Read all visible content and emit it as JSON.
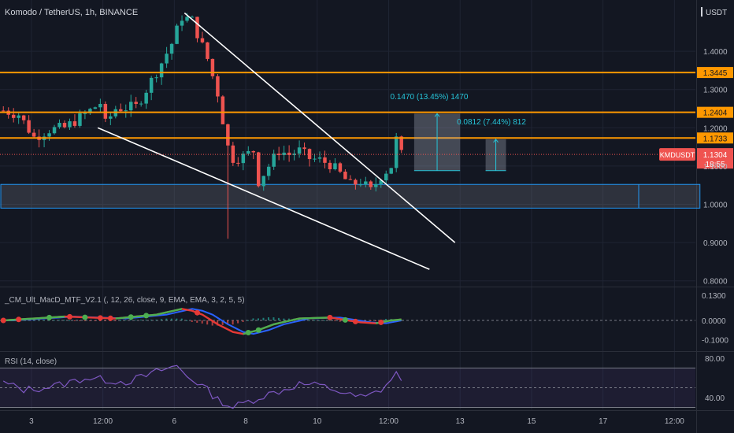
{
  "header": {
    "symbol_title": "Komodo / TetherUS, 1h, BINANCE",
    "currency": "USDT"
  },
  "colors": {
    "background": "#131722",
    "grid": "#1f2433",
    "bull": "#26a69a",
    "bear": "#ef5350",
    "level_line": "#ff9800",
    "level_label_bg": "#ff9800",
    "support_zone_border": "#2196f3",
    "trendline": "#ffffff",
    "measure": "#26c6da",
    "macd_green": "#4caf50",
    "macd_red": "#e53935",
    "macd_blue": "#2962ff",
    "rsi_line": "#7e57c2",
    "price_label_bg": "#ef5350"
  },
  "chart_data": [
    {
      "type": "candlestick",
      "name": "KMDUSDT",
      "title": "Komodo / TetherUS, 1h, BINANCE",
      "ylim": [
        0.8,
        1.5
      ],
      "y_ticks": [
        1.4,
        1.3,
        1.2,
        1.1,
        1.0,
        0.9,
        0.8
      ],
      "x_ticks": [
        "3",
        "12:00",
        "6",
        "8",
        "10",
        "12:00",
        "13",
        "15",
        "17",
        "12:00"
      ],
      "x_tick_bars": [
        6,
        20,
        34,
        48,
        62,
        76,
        90,
        104,
        118,
        132
      ],
      "price_path": [
        [
          0,
          1.245
        ],
        [
          3,
          1.235
        ],
        [
          6,
          1.175
        ],
        [
          9,
          1.195
        ],
        [
          12,
          1.2
        ],
        [
          16,
          1.235
        ],
        [
          19,
          1.265
        ],
        [
          20,
          1.21
        ],
        [
          22,
          1.25
        ],
        [
          26,
          1.255
        ],
        [
          28,
          1.3
        ],
        [
          31,
          1.37
        ],
        [
          33,
          1.42
        ],
        [
          35,
          1.49
        ],
        [
          37,
          1.48
        ],
        [
          40,
          1.38
        ],
        [
          42,
          1.29
        ],
        [
          44,
          1.15
        ],
        [
          45,
          1.12
        ],
        [
          47,
          1.125
        ],
        [
          49,
          1.14
        ],
        [
          50,
          1.06
        ],
        [
          52,
          1.1
        ],
        [
          54,
          1.14
        ],
        [
          56,
          1.13
        ],
        [
          58,
          1.14
        ],
        [
          60,
          1.12
        ],
        [
          62,
          1.115
        ],
        [
          64,
          1.105
        ],
        [
          66,
          1.08
        ],
        [
          68,
          1.05
        ],
        [
          70,
          1.06
        ],
        [
          72,
          1.035
        ],
        [
          74,
          1.075
        ],
        [
          76,
          1.1
        ],
        [
          77,
          1.17
        ],
        [
          78,
          1.13
        ]
      ],
      "wick_extremes": {
        "high": 1.5,
        "spike_low": 0.91,
        "spike_bar": 44
      },
      "current_price": {
        "ticker": "KMDUSDT",
        "value": "1.1304",
        "countdown": "18:55"
      },
      "levels": [
        {
          "value": 1.3445,
          "label": "1.3445"
        },
        {
          "value": 1.2404,
          "label": "1.2404"
        },
        {
          "value": 1.1733,
          "label": "1.1733"
        }
      ],
      "support_zone": {
        "from": 0.99,
        "to": 1.052,
        "bar_from": 0,
        "bar_to": 137,
        "divider_bar": 125
      },
      "trendlines": [
        {
          "from": [
            36,
            1.5
          ],
          "to": [
            89,
            0.9
          ]
        },
        {
          "from": [
            19,
            1.2
          ],
          "to": [
            84,
            0.83
          ]
        }
      ],
      "measurements": [
        {
          "label": "0.1470 (13.45%) 1470",
          "from_bar": 81,
          "to_bar": 90,
          "base": 1.088,
          "top": 1.237
        },
        {
          "label": "0.0812 (7.44%) 812",
          "from_bar": 95,
          "to_bar": 99,
          "base": 1.088,
          "top": 1.17
        }
      ]
    },
    {
      "type": "line",
      "title": "_CM_Ult_MacD_MTF_V2.1 (, 12, 26, close, 9, EMA, EMA, 3, 2, 5, 5)",
      "ylim": [
        -0.1,
        0.14
      ],
      "y_ticks": [
        0.13,
        0.0,
        -0.1
      ],
      "series": [
        {
          "values": [
            [
              0,
              0.0
            ],
            [
              12,
              0.02
            ],
            [
              22,
              0.01
            ],
            [
              30,
              0.03
            ],
            [
              35,
              0.06
            ],
            [
              37,
              0.05
            ],
            [
              39,
              0.03
            ],
            [
              42,
              -0.02
            ],
            [
              45,
              -0.06
            ],
            [
              47,
              -0.07
            ],
            [
              50,
              -0.05
            ],
            [
              53,
              -0.02
            ],
            [
              58,
              0.01
            ],
            [
              64,
              0.015
            ],
            [
              70,
              -0.01
            ],
            [
              73,
              -0.015
            ],
            [
              76,
              0.0
            ],
            [
              78,
              0.005
            ]
          ]
        }
      ],
      "dots": [
        {
          "bar": 0,
          "color": "red"
        },
        {
          "bar": 3,
          "color": "red"
        },
        {
          "bar": 9,
          "color": "green"
        },
        {
          "bar": 13,
          "color": "red"
        },
        {
          "bar": 16,
          "color": "green"
        },
        {
          "bar": 19,
          "color": "red"
        },
        {
          "bar": 21,
          "color": "red"
        },
        {
          "bar": 25,
          "color": "green"
        },
        {
          "bar": 28,
          "color": "green"
        },
        {
          "bar": 38,
          "color": "red"
        },
        {
          "bar": 48,
          "color": "green"
        },
        {
          "bar": 50,
          "color": "green"
        },
        {
          "bar": 64,
          "color": "red"
        },
        {
          "bar": 67,
          "color": "green"
        },
        {
          "bar": 69,
          "color": "red"
        },
        {
          "bar": 74,
          "color": "red"
        }
      ]
    },
    {
      "type": "line",
      "title": "RSI (14, close)",
      "ylim": [
        25,
        85
      ],
      "y_ticks": [
        80.0,
        40.0
      ],
      "band": [
        70,
        30
      ],
      "midline": 50,
      "series": [
        {
          "values": [
            [
              0,
              55
            ],
            [
              4,
              48
            ],
            [
              8,
              50
            ],
            [
              12,
              54
            ],
            [
              16,
              60
            ],
            [
              20,
              58
            ],
            [
              24,
              56
            ],
            [
              28,
              62
            ],
            [
              31,
              68
            ],
            [
              34,
              72
            ],
            [
              36,
              62
            ],
            [
              39,
              52
            ],
            [
              42,
              38
            ],
            [
              45,
              30
            ],
            [
              48,
              36
            ],
            [
              51,
              42
            ],
            [
              55,
              48
            ],
            [
              58,
              54
            ],
            [
              62,
              52
            ],
            [
              65,
              48
            ],
            [
              68,
              42
            ],
            [
              71,
              40
            ],
            [
              74,
              48
            ],
            [
              76,
              58
            ],
            [
              77,
              64
            ],
            [
              78,
              60
            ]
          ]
        }
      ]
    }
  ]
}
